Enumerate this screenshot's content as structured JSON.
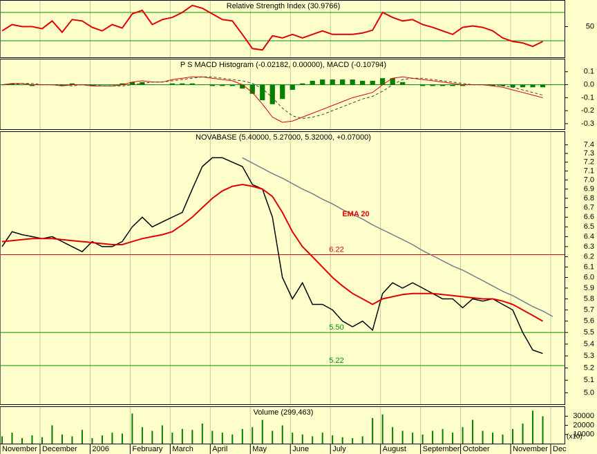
{
  "chart_data": {
    "type": "stock",
    "categories": [
      "November",
      null,
      null,
      null,
      "December",
      null,
      null,
      null,
      null,
      "2006",
      null,
      null,
      null,
      "February",
      null,
      null,
      null,
      "March",
      null,
      null,
      null,
      "April",
      null,
      null,
      null,
      "May",
      null,
      null,
      null,
      "June",
      null,
      null,
      null,
      "July",
      null,
      null,
      null,
      null,
      "August",
      null,
      null,
      null,
      "September",
      null,
      null,
      null,
      "October",
      null,
      null,
      null,
      null,
      "November",
      null,
      null,
      null,
      "Dec"
    ],
    "panels": [
      {
        "title": "Relative Strength Index (30.9766)",
        "ylim": [
          6.6,
          87.6
        ],
        "yticks": [
          50
        ],
        "hlines": [
          {
            "value": 70,
            "color": "#009000"
          },
          {
            "value": 30,
            "color": "#009000"
          }
        ],
        "series": [
          {
            "type": "line",
            "color": "#e00000",
            "width": 2,
            "values": [
              44,
              53,
              50,
              50,
              47,
              58,
              42,
              60,
              58,
              49,
              44,
              53,
              48,
              68,
              73,
              53,
              60,
              63,
              70,
              80,
              76,
              68,
              60,
              58,
              39,
              19,
              17,
              37,
              34,
              39,
              34,
              39,
              44,
              39,
              39,
              39,
              41,
              45,
              70,
              63,
              58,
              60,
              53,
              49,
              44,
              39,
              49,
              51,
              49,
              44,
              34,
              29,
              27,
              22,
              29,
              null
            ]
          }
        ]
      },
      {
        "title": "P S MACD Histogram (-0.02182, 0.00000), MACD (-0.10794)",
        "ylim": [
          -0.343,
          0.2
        ],
        "yticks": [
          0.1,
          {
            "value": 0,
            "label": "0.0"
          },
          -0.1,
          -0.2,
          -0.3
        ],
        "hlines": [
          {
            "value": 0,
            "color": "#008000"
          }
        ],
        "series": [
          {
            "type": "bar",
            "color": "#008000",
            "values": [
              0,
              0.01,
              0,
              -0.01,
              0,
              0,
              -0.01,
              0.01,
              0,
              -0.01,
              0,
              0,
              0.01,
              0.02,
              0.02,
              0,
              0,
              0.01,
              0.01,
              0.01,
              0,
              -0.01,
              -0.01,
              -0.01,
              -0.03,
              -0.07,
              -0.12,
              -0.15,
              -0.11,
              -0.04,
              0.01,
              0.03,
              0.04,
              0.04,
              0.04,
              0.04,
              0.03,
              0.03,
              0.05,
              0.05,
              0.02,
              0,
              -0.01,
              -0.01,
              -0.01,
              -0.01,
              -0.01,
              0,
              0,
              -0.01,
              -0.01,
              -0.02,
              -0.02,
              -0.02,
              -0.02,
              null
            ]
          },
          {
            "type": "line",
            "color": "#e00000",
            "width": 1,
            "values": [
              0,
              0.01,
              0.01,
              0,
              0,
              0,
              -0.01,
              0,
              0,
              -0.01,
              -0.01,
              -0.01,
              0,
              0.02,
              0.03,
              0.02,
              0.02,
              0.04,
              0.05,
              0.06,
              0.06,
              0.05,
              0.04,
              0.03,
              0.0,
              -0.06,
              -0.15,
              -0.25,
              -0.29,
              -0.28,
              -0.25,
              -0.22,
              -0.19,
              -0.16,
              -0.13,
              -0.1,
              -0.08,
              -0.06,
              0.0,
              0.05,
              0.06,
              0.05,
              0.04,
              0.03,
              0.02,
              0.01,
              0.0,
              0.0,
              0.0,
              -0.01,
              -0.02,
              -0.04,
              -0.06,
              -0.08,
              -0.1,
              null
            ]
          },
          {
            "type": "line",
            "color": "#404040",
            "width": 1,
            "dashed": true,
            "values": [
              0,
              0,
              0.01,
              0.01,
              0,
              0,
              0,
              -0.01,
              0,
              0,
              -0.01,
              -0.01,
              -0.01,
              0,
              0.01,
              0.02,
              0.02,
              0.03,
              0.04,
              0.05,
              0.06,
              0.06,
              0.05,
              0.04,
              0.03,
              0.01,
              -0.03,
              -0.1,
              -0.18,
              -0.24,
              -0.26,
              -0.25,
              -0.23,
              -0.2,
              -0.17,
              -0.14,
              -0.11,
              -0.09,
              -0.05,
              0.0,
              0.04,
              0.05,
              0.05,
              0.04,
              0.03,
              0.02,
              0.01,
              0.0,
              0.0,
              0.0,
              -0.01,
              -0.02,
              -0.04,
              -0.06,
              -0.08,
              null
            ]
          }
        ]
      },
      {
        "title": "NOVABASE (5.40000, 5.27000, 5.32000, +0.07000)",
        "log": true,
        "ylim": [
          4.91,
          7.56
        ],
        "yticks": [
          {
            "value": 5,
            "label": "5.0"
          },
          5.1,
          5.2,
          5.3,
          5.4,
          5.5,
          5.6,
          5.7,
          5.8,
          5.9,
          {
            "value": 6,
            "label": "6.0"
          },
          6.1,
          6.2,
          6.3,
          6.4,
          6.5,
          6.6,
          6.7,
          6.8,
          6.9,
          {
            "value": 7,
            "label": "7.0"
          },
          7.1,
          7.2,
          7.3,
          7.4
        ],
        "hlines": [
          {
            "value": 6.22,
            "label": "6.22",
            "color": "#e00000"
          },
          {
            "value": 5.5,
            "label": "5.50",
            "color": "#009000"
          },
          {
            "value": 5.22,
            "label": "5.22",
            "color": "#009000"
          }
        ],
        "annotations": [
          "EMA 20"
        ],
        "series": [
          {
            "type": "line",
            "color": "#000000",
            "width": 1.5,
            "values": [
              6.3,
              6.45,
              6.42,
              6.4,
              6.38,
              6.4,
              6.35,
              6.3,
              6.25,
              6.35,
              6.3,
              6.3,
              6.35,
              6.5,
              6.6,
              6.5,
              6.55,
              6.6,
              6.65,
              6.9,
              7.15,
              7.25,
              7.25,
              7.2,
              7.15,
              6.95,
              6.9,
              6.6,
              6.0,
              5.8,
              5.95,
              5.75,
              5.75,
              5.7,
              5.6,
              5.55,
              5.6,
              5.52,
              5.85,
              5.95,
              5.9,
              5.95,
              5.9,
              5.85,
              5.8,
              5.8,
              5.72,
              5.8,
              5.78,
              5.8,
              5.75,
              5.7,
              5.5,
              5.35,
              5.32,
              null
            ]
          },
          {
            "type": "line",
            "color": "#e00000",
            "width": 2,
            "values": [
              6.35,
              6.36,
              6.37,
              6.38,
              6.38,
              6.38,
              6.37,
              6.36,
              6.35,
              6.34,
              6.33,
              6.32,
              6.32,
              6.35,
              6.38,
              6.4,
              6.42,
              6.45,
              6.52,
              6.6,
              6.7,
              6.8,
              6.88,
              6.93,
              6.95,
              6.93,
              6.9,
              6.82,
              6.65,
              6.45,
              6.3,
              6.2,
              6.1,
              6.0,
              5.92,
              5.85,
              5.8,
              5.75,
              5.8,
              5.82,
              5.84,
              5.85,
              5.85,
              5.85,
              5.84,
              5.83,
              5.82,
              5.81,
              5.8,
              5.8,
              5.78,
              5.75,
              5.7,
              5.65,
              5.6,
              null
            ]
          },
          {
            "type": "line",
            "color": "#708090",
            "width": 1.5,
            "values": [
              null,
              null,
              null,
              null,
              null,
              null,
              null,
              null,
              null,
              null,
              null,
              null,
              null,
              null,
              null,
              null,
              null,
              null,
              null,
              null,
              null,
              null,
              null,
              null,
              7.25,
              7.19,
              7.13,
              7.07,
              7.02,
              6.96,
              6.9,
              6.85,
              6.79,
              6.74,
              6.68,
              6.63,
              6.58,
              6.52,
              6.47,
              6.42,
              6.37,
              6.32,
              6.26,
              6.21,
              6.16,
              6.11,
              6.07,
              6.02,
              5.97,
              5.92,
              5.87,
              5.83,
              5.78,
              5.73,
              5.69,
              5.64
            ]
          }
        ]
      },
      {
        "title": "Volume (299,463)",
        "ylim": [
          0,
          40800
        ],
        "yticks": [
          10000,
          20000,
          30000
        ],
        "unit": "(x10)",
        "series": [
          {
            "type": "bar",
            "color": "#008000",
            "values": [
              8000,
              12000,
              6000,
              9000,
              7000,
              20000,
              10000,
              8000,
              15000,
              6000,
              9000,
              12000,
              11000,
              33000,
              18000,
              14000,
              20000,
              12000,
              16000,
              15000,
              22000,
              14000,
              12000,
              10000,
              16000,
              18000,
              26000,
              14000,
              20000,
              12000,
              10000,
              8000,
              12000,
              9000,
              7000,
              6000,
              8000,
              28000,
              32000,
              18000,
              14000,
              12000,
              10000,
              14000,
              16000,
              12000,
              18000,
              26000,
              14000,
              12000,
              10000,
              16000,
              22000,
              36000,
              30000,
              null
            ]
          }
        ]
      }
    ]
  }
}
